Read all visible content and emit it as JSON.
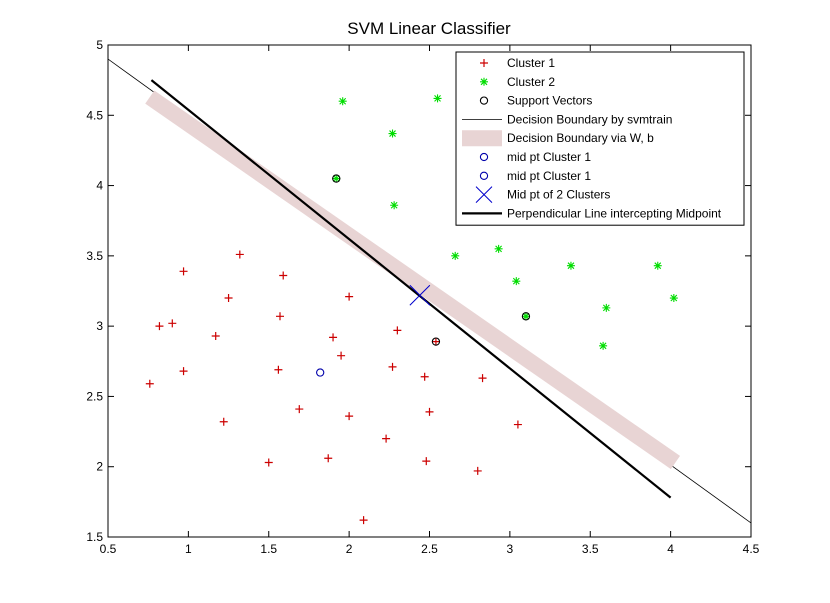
{
  "chart_data": {
    "type": "scatter",
    "title": "SVM Linear Classifier",
    "xlabel": "",
    "ylabel": "",
    "xlim": [
      0.5,
      4.5
    ],
    "ylim": [
      1.5,
      5
    ],
    "xticks": [
      0.5,
      1,
      1.5,
      2,
      2.5,
      3,
      3.5,
      4,
      4.5
    ],
    "xtick_labels": [
      "0.5",
      "1",
      "1.5",
      "2",
      "2.5",
      "3",
      "3.5",
      "4",
      "4.5"
    ],
    "yticks": [
      1.5,
      2,
      2.5,
      3,
      3.5,
      4,
      4.5,
      5
    ],
    "ytick_labels": [
      "1.5",
      "2",
      "2.5",
      "3",
      "3.5",
      "4",
      "4.5",
      "5"
    ],
    "grid": false,
    "legend_position": "top-right",
    "legend": [
      {
        "label": "Cluster 1",
        "marker": "plus",
        "color": "#cc0000"
      },
      {
        "label": "Cluster 2",
        "marker": "star",
        "color": "#00dd00"
      },
      {
        "label": "Support Vectors",
        "marker": "circle",
        "color": "#000000"
      },
      {
        "label": "Decision Boundary by svmtrain",
        "marker": "thin-line",
        "color": "#000000"
      },
      {
        "label": "Decision Boundary via W, b",
        "marker": "thick-band",
        "color": "#e8d4d4"
      },
      {
        "label": "mid pt Cluster 1",
        "marker": "circle",
        "color": "#0000aa"
      },
      {
        "label": "mid pt Cluster 1",
        "marker": "circle",
        "color": "#0000aa"
      },
      {
        "label": "Mid pt of 2 Clusters",
        "marker": "x",
        "color": "#0000cc"
      },
      {
        "label": "Perpendicular Line intercepting Midpoint",
        "marker": "line",
        "color": "#000000"
      }
    ],
    "series": [
      {
        "name": "Cluster 1",
        "marker": "plus",
        "color": "#cc0000",
        "points": [
          [
            0.76,
            2.59
          ],
          [
            0.82,
            3.0
          ],
          [
            0.9,
            3.02
          ],
          [
            0.97,
            3.39
          ],
          [
            0.97,
            2.68
          ],
          [
            1.17,
            2.93
          ],
          [
            1.22,
            2.32
          ],
          [
            1.25,
            3.2
          ],
          [
            1.32,
            3.51
          ],
          [
            1.5,
            2.03
          ],
          [
            1.56,
            2.69
          ],
          [
            1.57,
            3.07
          ],
          [
            1.59,
            3.36
          ],
          [
            1.69,
            2.41
          ],
          [
            1.87,
            2.06
          ],
          [
            1.9,
            2.92
          ],
          [
            1.95,
            2.79
          ],
          [
            2.0,
            3.21
          ],
          [
            2.0,
            2.36
          ],
          [
            2.09,
            1.62
          ],
          [
            2.23,
            2.2
          ],
          [
            2.27,
            2.71
          ],
          [
            2.3,
            2.97
          ],
          [
            2.47,
            2.64
          ],
          [
            2.48,
            2.04
          ],
          [
            2.5,
            2.39
          ],
          [
            2.54,
            2.89
          ],
          [
            2.8,
            1.97
          ],
          [
            2.83,
            2.63
          ],
          [
            3.05,
            2.3
          ]
        ]
      },
      {
        "name": "Cluster 2",
        "marker": "star",
        "color": "#00dd00",
        "points": [
          [
            1.96,
            4.6
          ],
          [
            2.55,
            4.62
          ],
          [
            2.27,
            4.37
          ],
          [
            1.92,
            4.05
          ],
          [
            2.28,
            3.86
          ],
          [
            2.66,
            3.5
          ],
          [
            2.93,
            3.55
          ],
          [
            3.04,
            3.32
          ],
          [
            3.1,
            3.07
          ],
          [
            3.38,
            3.43
          ],
          [
            3.6,
            3.13
          ],
          [
            3.58,
            2.86
          ],
          [
            3.92,
            3.43
          ],
          [
            4.02,
            3.2
          ]
        ]
      },
      {
        "name": "Support Vectors",
        "marker": "circle",
        "color": "#000000",
        "points": [
          [
            1.92,
            4.05
          ],
          [
            3.1,
            3.07
          ],
          [
            2.54,
            2.89
          ]
        ]
      },
      {
        "name": "mid pt Cluster 1",
        "marker": "circle",
        "color": "#0000aa",
        "points": [
          [
            1.82,
            2.67
          ]
        ]
      },
      {
        "name": "Mid pt of 2 Clusters",
        "marker": "x",
        "color": "#0000cc",
        "points": [
          [
            2.44,
            3.22
          ]
        ]
      }
    ],
    "lines": [
      {
        "name": "Decision Boundary by svmtrain",
        "style": "thin",
        "color": "#000000",
        "points": [
          [
            0.5,
            4.9
          ],
          [
            4.5,
            1.6
          ]
        ]
      },
      {
        "name": "Decision Boundary via W, b",
        "style": "band",
        "color": "#e8d4d4",
        "points": [
          [
            0.76,
            4.63
          ],
          [
            4.03,
            2.03
          ]
        ]
      },
      {
        "name": "Perpendicular Line intercepting Midpoint",
        "style": "thick",
        "color": "#000000",
        "points": [
          [
            0.77,
            4.75
          ],
          [
            4.0,
            1.78
          ]
        ]
      }
    ]
  }
}
